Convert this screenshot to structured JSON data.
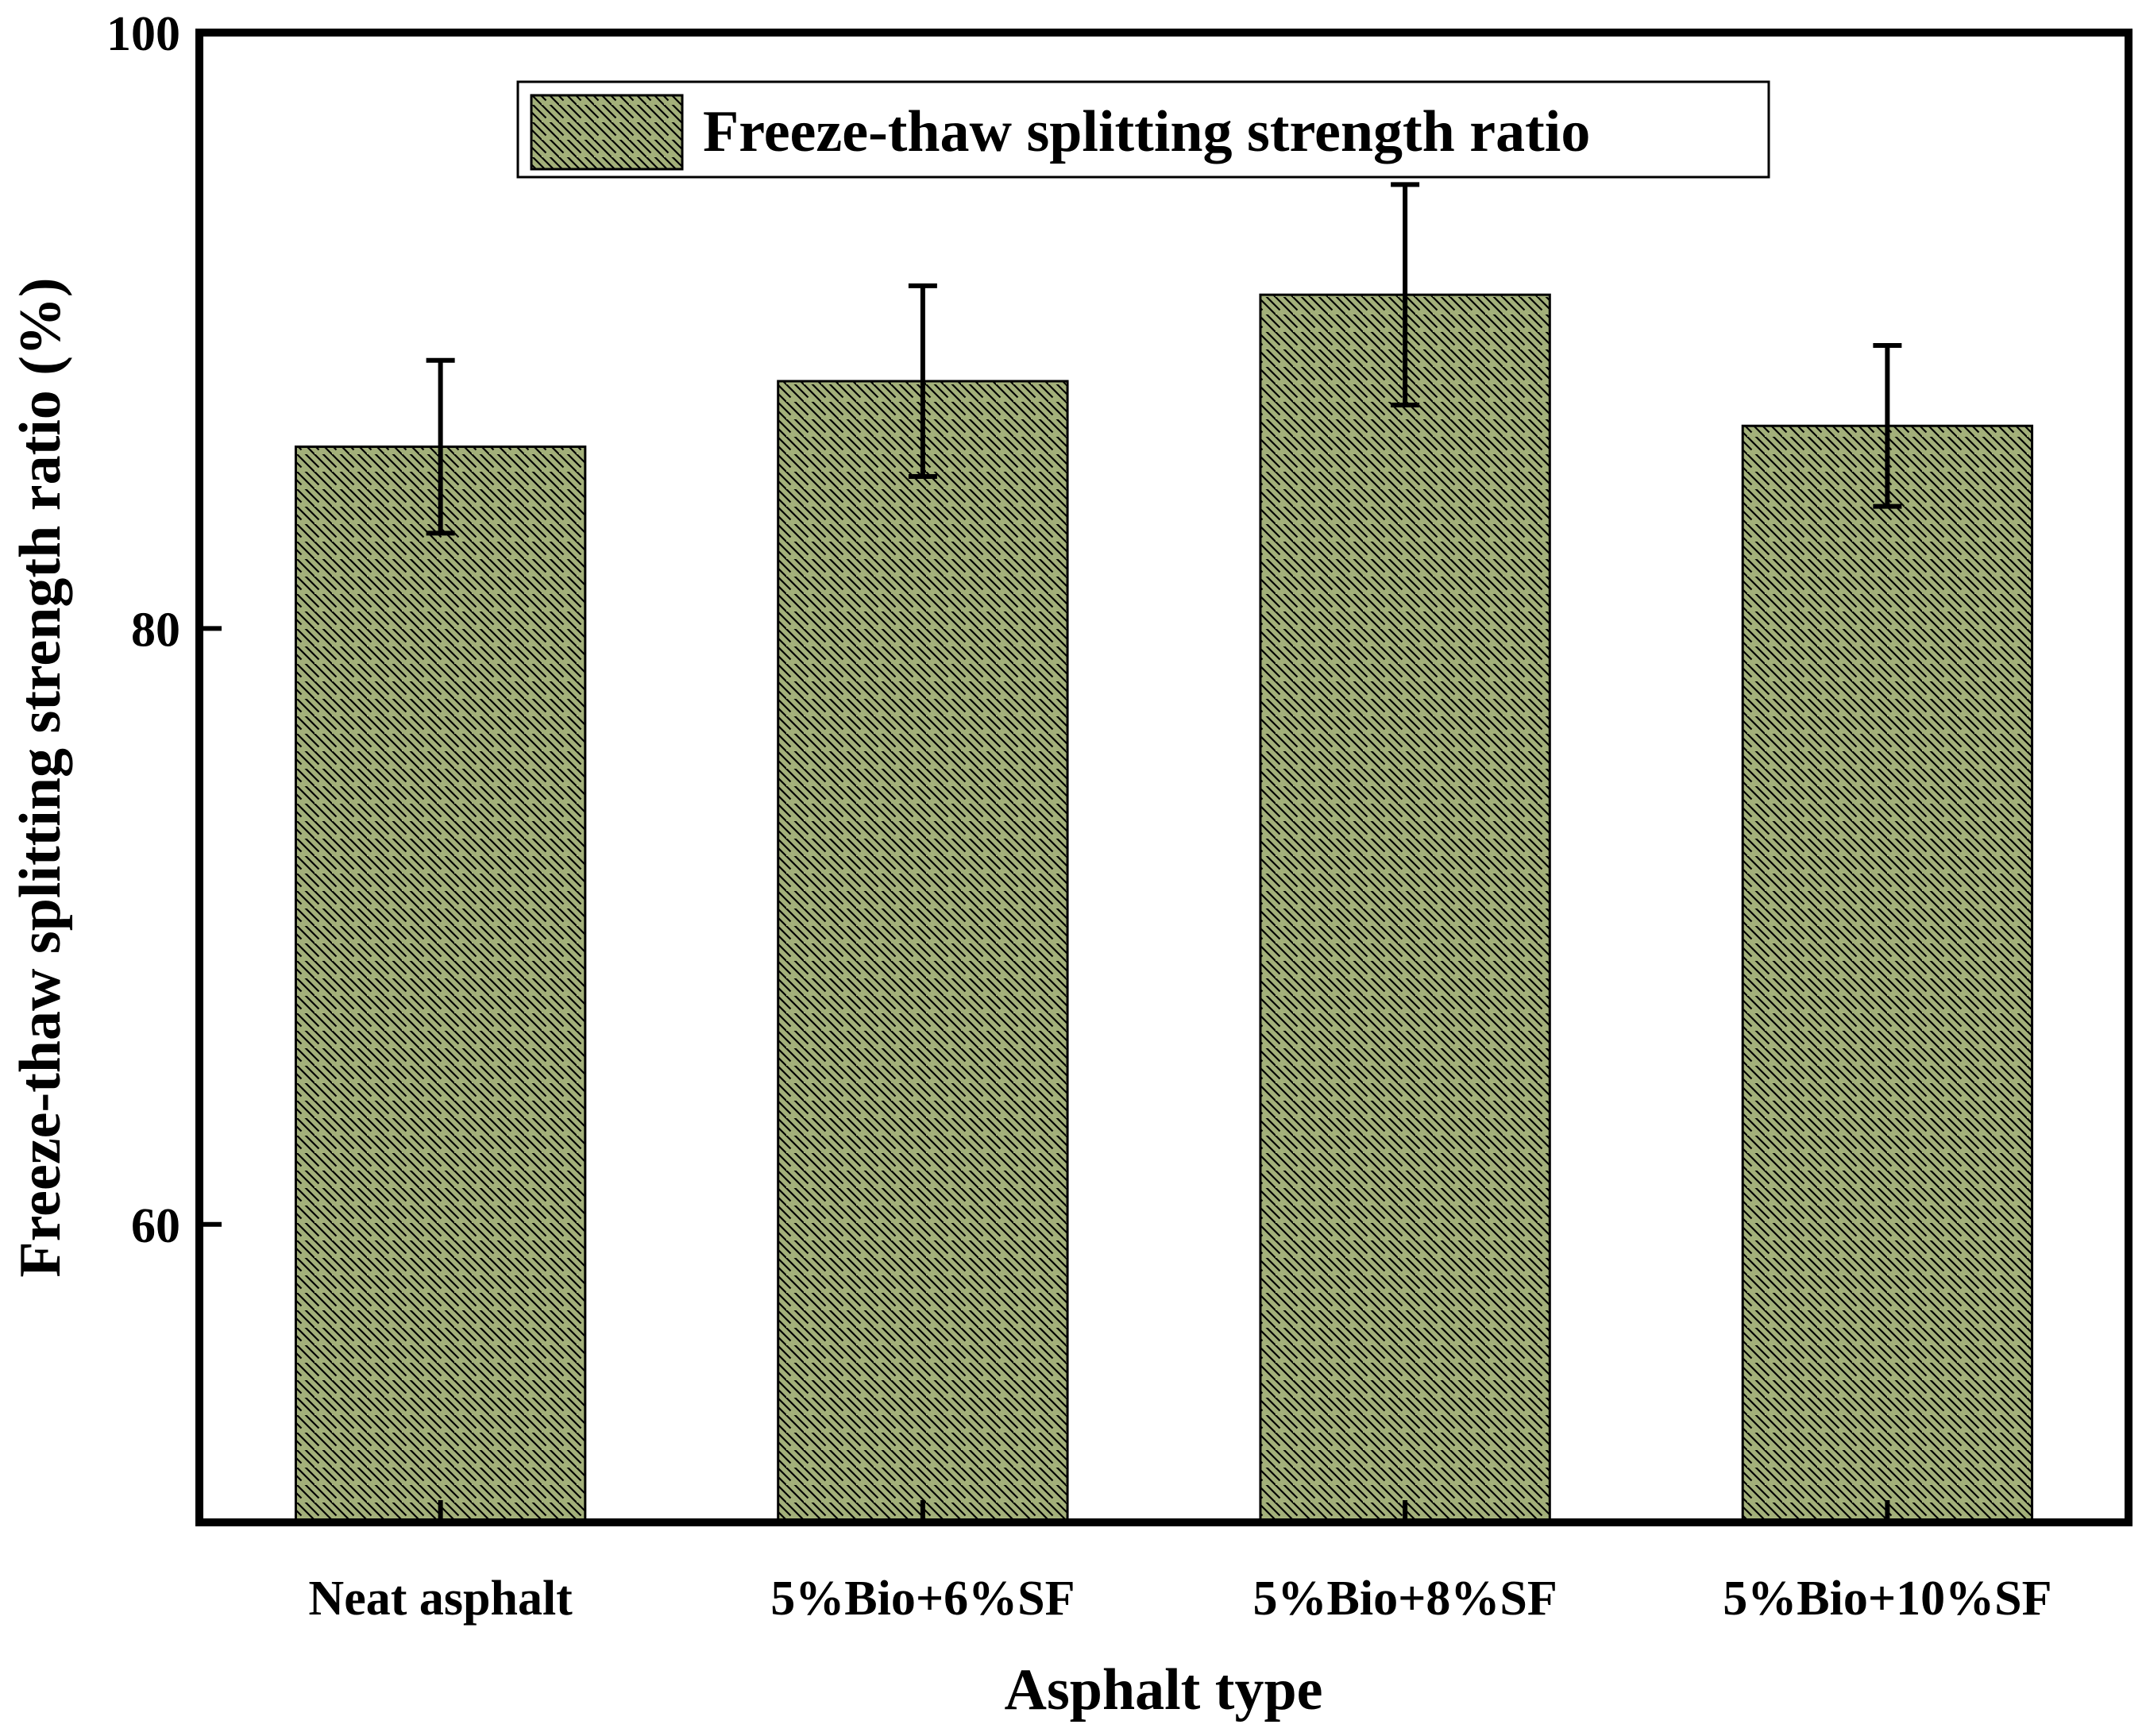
{
  "chart_data": {
    "type": "bar",
    "title": "",
    "xlabel": "Asphalt type",
    "ylabel": "Freeze-thaw splitting strength ratio (%)",
    "ylim": [
      50,
      100
    ],
    "yticks": [
      60,
      80,
      100
    ],
    "grid": false,
    "legend_position": "top-center",
    "categories": [
      "Neat asphalt",
      "5%Bio+6%SF",
      "5%Bio+8%SF",
      "5%Bio+10%SF"
    ],
    "series": [
      {
        "name": "Freeze-thaw splitting strength ratio",
        "values": [
          86.1,
          88.3,
          91.2,
          86.8
        ],
        "errors": [
          2.9,
          3.2,
          3.7,
          2.7
        ]
      }
    ],
    "bar_color": "#a3b07a",
    "hatch": "backslash"
  }
}
